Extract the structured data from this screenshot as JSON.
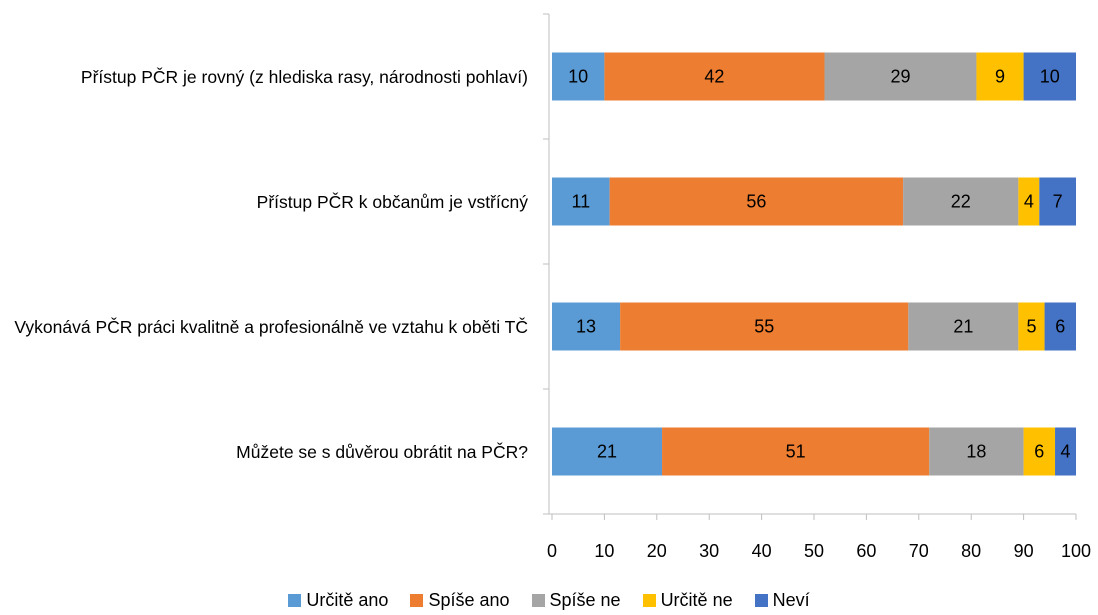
{
  "chart_data": {
    "type": "stacked_barh",
    "categories": [
      "Přístup PČR je rovný (z hlediska rasy, národnosti pohlaví)",
      "Přístup PČR k občanům je vstřícný",
      "Vykonává PČR práci kvalitně a profesionálně ve vztahu k oběti TČ",
      "Můžete se s důvěrou obrátit na PČR?"
    ],
    "series": [
      {
        "name": "Určitě ano",
        "color": "#5b9bd5",
        "values": [
          10,
          11,
          13,
          21
        ]
      },
      {
        "name": "Spíše ano",
        "color": "#ed7d31",
        "values": [
          42,
          56,
          55,
          51
        ]
      },
      {
        "name": "Spíše ne",
        "color": "#a5a5a5",
        "values": [
          29,
          22,
          21,
          18
        ]
      },
      {
        "name": "Určitě ne",
        "color": "#ffc000",
        "values": [
          9,
          4,
          5,
          6
        ]
      },
      {
        "name": "Neví",
        "color": "#4472c4",
        "values": [
          10,
          7,
          6,
          4
        ]
      }
    ],
    "xlim": [
      0,
      100
    ],
    "xticks": [
      0,
      10,
      20,
      30,
      40,
      50,
      60,
      70,
      80,
      90,
      100
    ],
    "legend": "bottom"
  }
}
